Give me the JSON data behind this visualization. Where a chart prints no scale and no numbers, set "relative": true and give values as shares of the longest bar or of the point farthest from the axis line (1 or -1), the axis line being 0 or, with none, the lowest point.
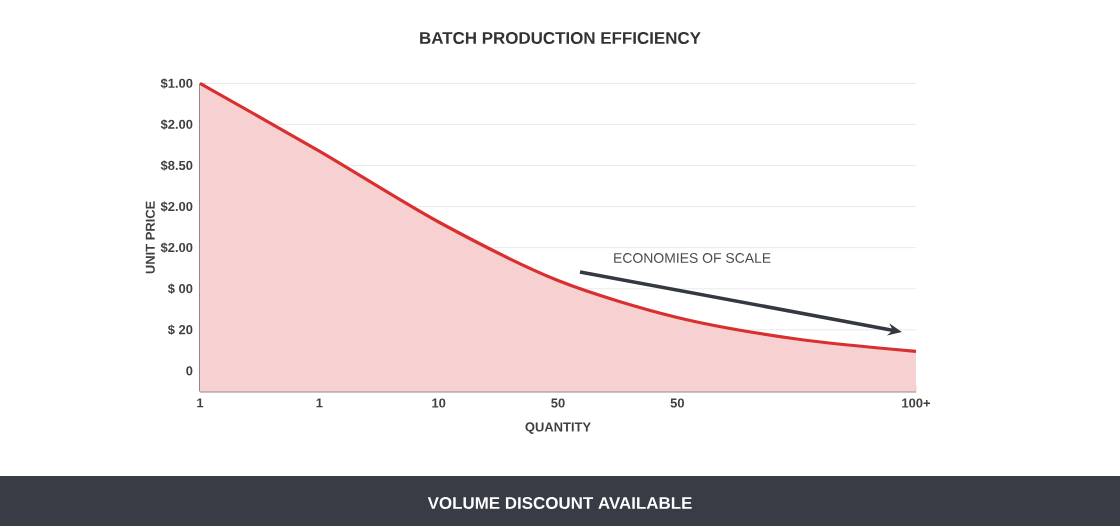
{
  "chart_data": {
    "type": "area",
    "title": "BATCH PRODUCTION EFFICIENCY",
    "xlabel": "QUANTITY",
    "ylabel": "UNIT PRICE",
    "categories": [
      "1",
      "1",
      "10",
      "50",
      "50",
      null,
      "100+"
    ],
    "relative": true,
    "series": [
      {
        "color": "#d9302f",
        "values": [
          1,
          0.78,
          0.55,
          0.36,
          0.24,
          0.17,
          0.13
        ]
      }
    ],
    "grid": "y",
    "annotations": [
      "ECONOMIES OF SCALE",
      "VOLUME DISCOUNT AVAILABLE",
      "0",
      "$ 20",
      "$ 00",
      "$2.00",
      "$2.00",
      "$8.50",
      "$2.00",
      "$1.00"
    ]
  }
}
